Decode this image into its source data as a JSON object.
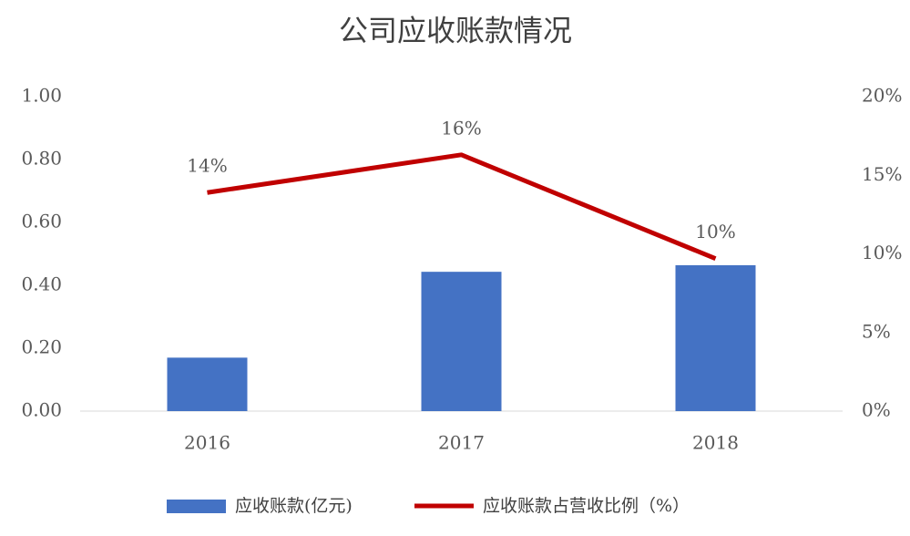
{
  "chart_data": {
    "type": "bar-line",
    "title": "公司应收账款情况",
    "categories": [
      "2016",
      "2017",
      "2018"
    ],
    "series": [
      {
        "name": "应收账款(亿元)",
        "type": "bar",
        "color": "#4472c4",
        "values": [
          0.17,
          0.443,
          0.464
        ]
      },
      {
        "name": "应收账款占营收比例（%）",
        "type": "line",
        "axis": "y2",
        "color": "#c00000",
        "values": [
          13.9,
          16.3,
          9.7
        ],
        "value_labels": [
          "14%",
          "16%",
          "10%"
        ]
      }
    ],
    "ylim": [
      0,
      1
    ],
    "yticks": [
      {
        "value": 0,
        "label": "0.00"
      },
      {
        "value": 0.2,
        "label": "0.20"
      },
      {
        "value": 0.4,
        "label": "0.40"
      },
      {
        "value": 0.6,
        "label": "0.60"
      },
      {
        "value": 0.8,
        "label": "0.80"
      },
      {
        "value": 1,
        "label": "1.00"
      }
    ],
    "y2lim": [
      0,
      20
    ],
    "y2ticks": [
      {
        "value": 0,
        "label": "0%"
      },
      {
        "value": 5,
        "label": "5%"
      },
      {
        "value": 10,
        "label": "10%"
      },
      {
        "value": 15,
        "label": "15%"
      },
      {
        "value": 20,
        "label": "20%"
      }
    ],
    "legend": "bottom"
  }
}
